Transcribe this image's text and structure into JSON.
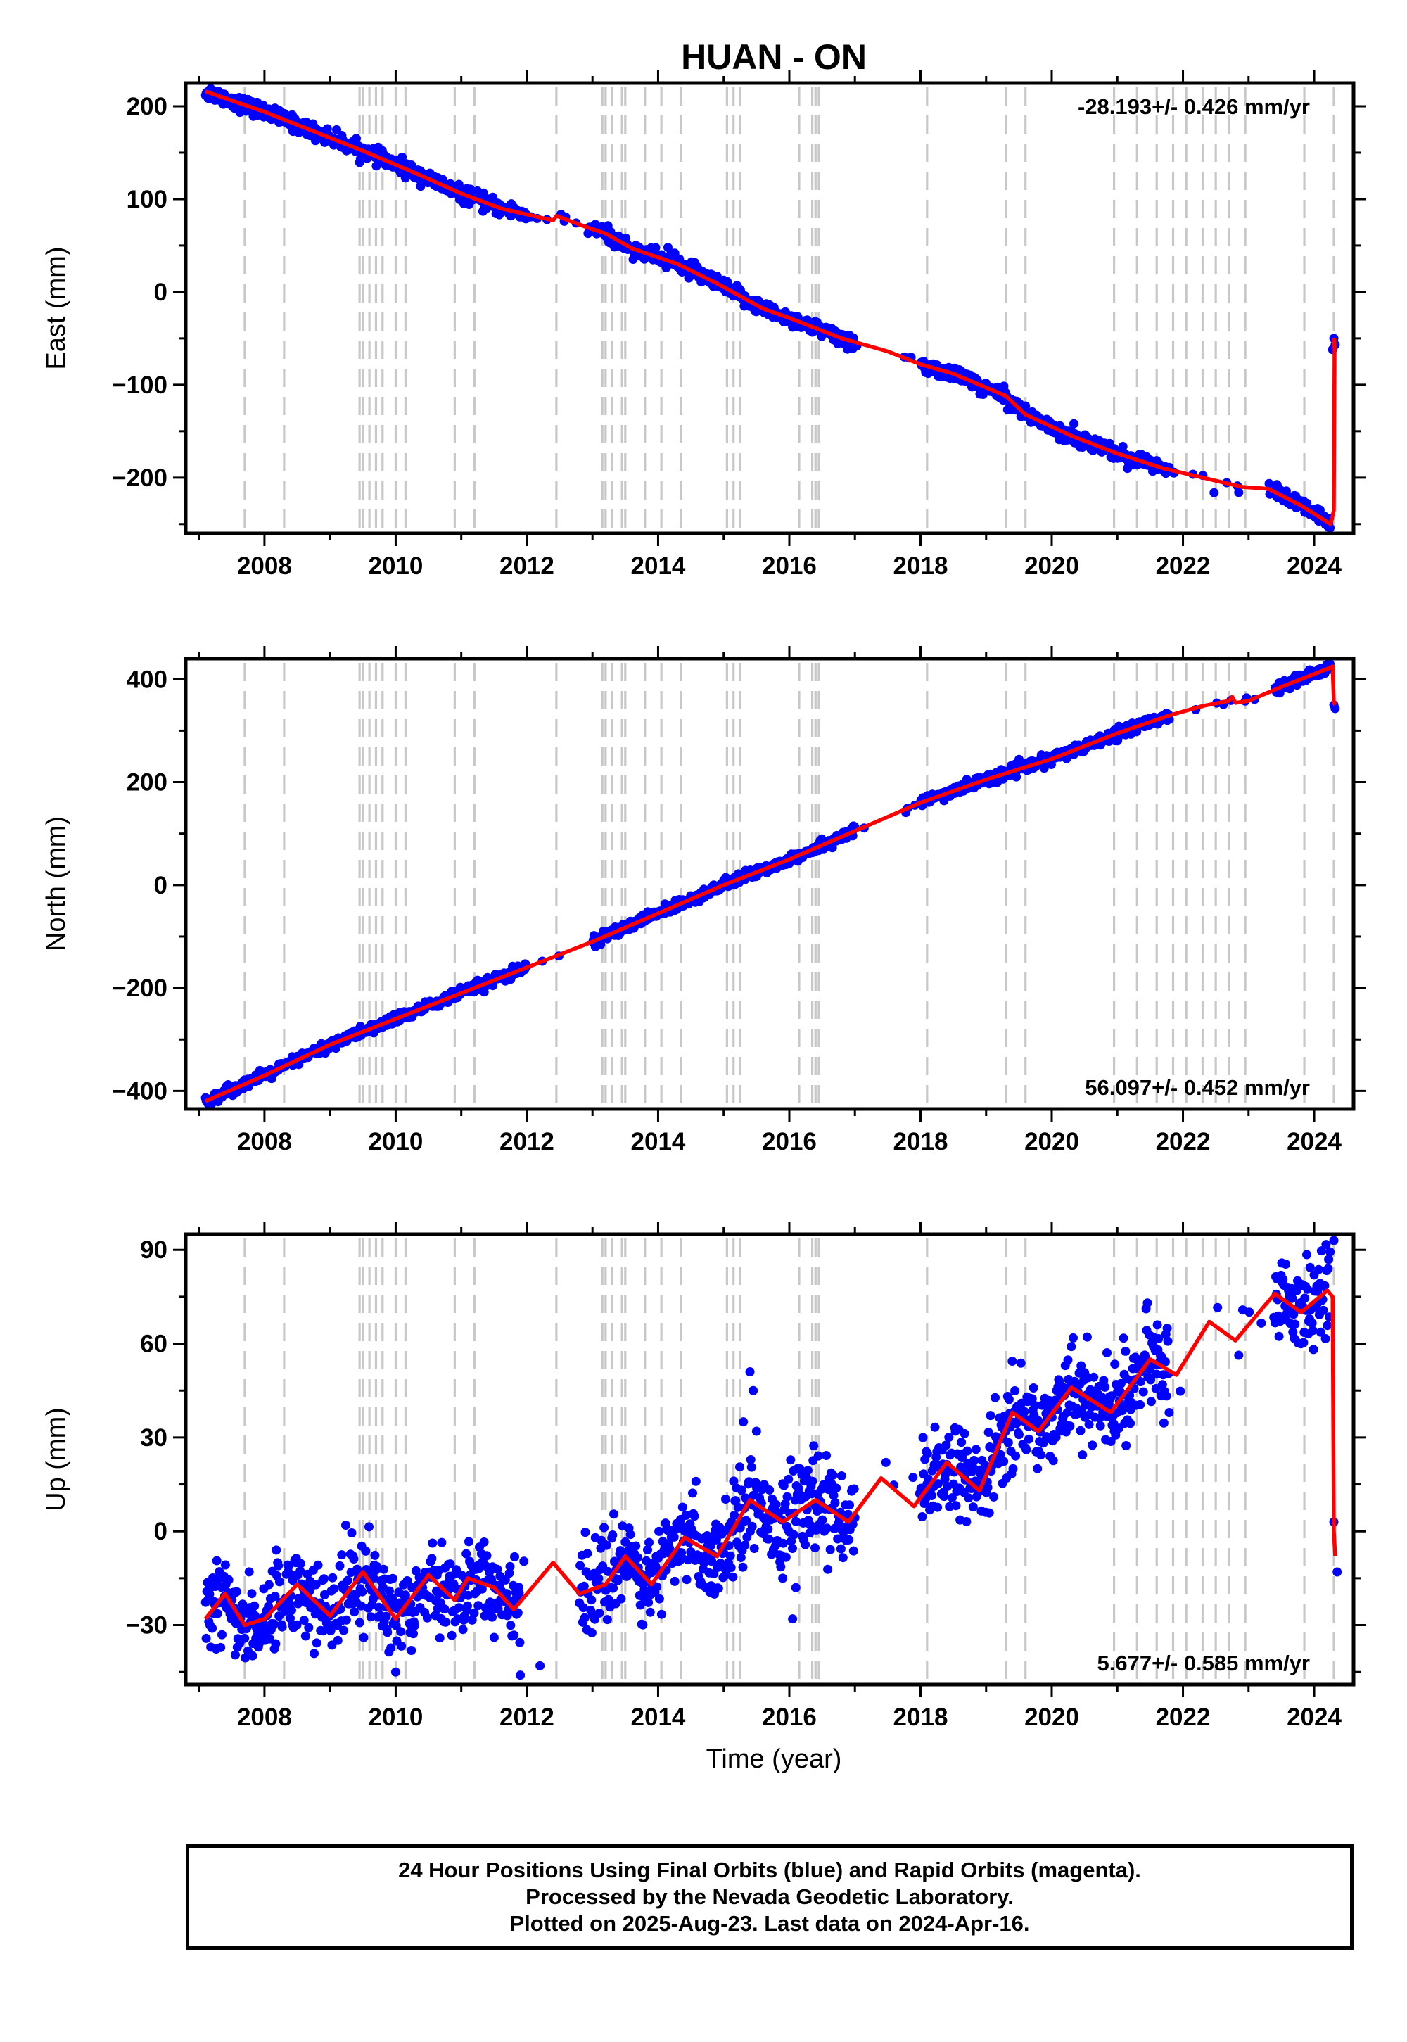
{
  "title": "HUAN - ON",
  "x_axis_label": "Time (year)",
  "footer": {
    "line1": "24 Hour Positions Using Final Orbits (blue) and Rapid Orbits (magenta).",
    "line2": "Processed by the Nevada Geodetic Laboratory.",
    "line3": "Plotted on 2025-Aug-23. Last data on 2024-Apr-16."
  },
  "colors": {
    "data": "#0000ff",
    "model": "#ff0000",
    "steps": "#c8c8c8",
    "frame": "#000000"
  },
  "chart_data": [
    {
      "type": "scatter",
      "component": "East",
      "ylabel": "East (mm)",
      "rate": "-28.193+/- 0.426 mm/yr",
      "rate_position": "top-right",
      "xlim": [
        2006.8,
        2024.6
      ],
      "ylim": [
        -260,
        225
      ],
      "xticks": [
        2008,
        2010,
        2012,
        2014,
        2016,
        2018,
        2020,
        2022,
        2024
      ],
      "yticks": [
        200,
        100,
        0,
        -100,
        -200
      ],
      "ytick_labels": [
        "200",
        "100",
        "0",
        "−100",
        "−200"
      ],
      "model": [
        [
          2007.1,
          216
        ],
        [
          2008.0,
          194
        ],
        [
          2009.5,
          152
        ],
        [
          2010.3,
          128
        ],
        [
          2011.0,
          106
        ],
        [
          2011.6,
          90
        ],
        [
          2012.4,
          77
        ],
        [
          2012.45,
          82
        ],
        [
          2012.9,
          70
        ],
        [
          2013.2,
          63
        ],
        [
          2013.6,
          47
        ],
        [
          2014.3,
          30
        ],
        [
          2014.9,
          9
        ],
        [
          2015.6,
          -18
        ],
        [
          2016.0,
          -28
        ],
        [
          2016.8,
          -50
        ],
        [
          2017.5,
          -64
        ],
        [
          2018.0,
          -78
        ],
        [
          2018.5,
          -88
        ],
        [
          2019.3,
          -112
        ],
        [
          2019.6,
          -132
        ],
        [
          2020.3,
          -155
        ],
        [
          2021.0,
          -174
        ],
        [
          2021.7,
          -190
        ],
        [
          2022.3,
          -200
        ],
        [
          2022.9,
          -210
        ],
        [
          2023.3,
          -212
        ],
        [
          2023.8,
          -230
        ],
        [
          2024.25,
          -250
        ],
        [
          2024.3,
          -235
        ],
        [
          2024.31,
          -62
        ],
        [
          2024.3,
          -50
        ]
      ],
      "gaps": [
        [
          2012.0,
          2013.0
        ],
        [
          2017.0,
          2018.0
        ],
        [
          2021.8,
          2023.4
        ]
      ],
      "scatter": 4,
      "outliers": [
        [
          2014.15,
          48
        ],
        [
          2014.2,
          42
        ],
        [
          2024.3,
          -50
        ],
        [
          2024.32,
          -57
        ],
        [
          2024.28,
          -62
        ]
      ]
    },
    {
      "type": "scatter",
      "component": "North",
      "ylabel": "North (mm)",
      "rate": "56.097+/- 0.452 mm/yr",
      "rate_position": "bottom-right",
      "xlim": [
        2006.8,
        2024.6
      ],
      "ylim": [
        -435,
        440
      ],
      "xticks": [
        2008,
        2010,
        2012,
        2014,
        2016,
        2018,
        2020,
        2022,
        2024
      ],
      "yticks": [
        400,
        200,
        0,
        -200,
        -400
      ],
      "ytick_labels": [
        "400",
        "200",
        "0",
        "−200",
        "−400"
      ],
      "model": [
        [
          2007.1,
          -420
        ],
        [
          2008.0,
          -370
        ],
        [
          2009.0,
          -310
        ],
        [
          2010.0,
          -260
        ],
        [
          2011.0,
          -210
        ],
        [
          2012.0,
          -160
        ],
        [
          2013.0,
          -110
        ],
        [
          2014.0,
          -55
        ],
        [
          2015.0,
          0
        ],
        [
          2016.0,
          50
        ],
        [
          2017.0,
          105
        ],
        [
          2018.0,
          160
        ],
        [
          2019.0,
          205
        ],
        [
          2020.0,
          245
        ],
        [
          2021.0,
          295
        ],
        [
          2021.8,
          330
        ],
        [
          2022.3,
          348
        ],
        [
          2022.7,
          358
        ],
        [
          2022.75,
          366
        ],
        [
          2022.8,
          354
        ],
        [
          2023.0,
          358
        ],
        [
          2023.5,
          385
        ],
        [
          2024.2,
          420
        ],
        [
          2024.28,
          425
        ],
        [
          2024.3,
          355
        ],
        [
          2024.32,
          350
        ]
      ],
      "gaps": [
        [
          2012.0,
          2013.0
        ],
        [
          2017.0,
          2018.0
        ],
        [
          2021.8,
          2023.4
        ]
      ],
      "scatter": 5,
      "outliers": [
        [
          2024.3,
          350
        ],
        [
          2024.32,
          343
        ]
      ]
    },
    {
      "type": "scatter",
      "component": "Up",
      "ylabel": "Up (mm)",
      "rate": "5.677+/- 0.585 mm/yr",
      "rate_position": "bottom-right",
      "xlim": [
        2006.8,
        2024.6
      ],
      "ylim": [
        -49,
        95
      ],
      "xticks": [
        2008,
        2010,
        2012,
        2014,
        2016,
        2018,
        2020,
        2022,
        2024
      ],
      "yticks": [
        90,
        60,
        30,
        0,
        -30
      ],
      "ytick_labels": [
        "90",
        "60",
        "30",
        "0",
        "−30"
      ],
      "model": [
        [
          2007.1,
          -28
        ],
        [
          2007.4,
          -20
        ],
        [
          2007.7,
          -30
        ],
        [
          2008.0,
          -28
        ],
        [
          2008.5,
          -17
        ],
        [
          2009.0,
          -27
        ],
        [
          2009.5,
          -13
        ],
        [
          2010.0,
          -28
        ],
        [
          2010.5,
          -14
        ],
        [
          2010.9,
          -22
        ],
        [
          2011.1,
          -15
        ],
        [
          2011.5,
          -18
        ],
        [
          2011.8,
          -25
        ],
        [
          2012.4,
          -10
        ],
        [
          2012.8,
          -20
        ],
        [
          2013.2,
          -17
        ],
        [
          2013.5,
          -8
        ],
        [
          2013.9,
          -17
        ],
        [
          2014.4,
          -2
        ],
        [
          2014.9,
          -8
        ],
        [
          2015.4,
          10
        ],
        [
          2015.9,
          3
        ],
        [
          2016.4,
          10
        ],
        [
          2016.9,
          3
        ],
        [
          2017.4,
          17
        ],
        [
          2017.9,
          8
        ],
        [
          2018.4,
          22
        ],
        [
          2018.9,
          13
        ],
        [
          2019.4,
          38
        ],
        [
          2019.8,
          32
        ],
        [
          2020.3,
          46
        ],
        [
          2020.9,
          38
        ],
        [
          2021.5,
          55
        ],
        [
          2021.9,
          50
        ],
        [
          2022.4,
          67
        ],
        [
          2022.8,
          61
        ],
        [
          2023.4,
          76
        ],
        [
          2023.8,
          70
        ],
        [
          2024.2,
          77
        ],
        [
          2024.28,
          75
        ],
        [
          2024.3,
          0
        ],
        [
          2024.32,
          -8
        ]
      ],
      "gaps": [
        [
          2011.9,
          2012.8
        ],
        [
          2017.0,
          2018.0
        ],
        [
          2021.8,
          2023.4
        ]
      ],
      "scatter": 7,
      "outliers": [
        [
          2015.4,
          51
        ],
        [
          2015.45,
          45
        ],
        [
          2015.3,
          35
        ],
        [
          2015.5,
          32
        ],
        [
          2015.9,
          -15
        ],
        [
          2016.1,
          -18
        ],
        [
          2016.05,
          -28
        ],
        [
          2010.0,
          -45
        ],
        [
          2011.9,
          -46
        ],
        [
          2012.2,
          -43
        ],
        [
          2024.35,
          -13
        ],
        [
          2024.3,
          3
        ],
        [
          2024.3,
          93
        ]
      ]
    }
  ],
  "step_epochs": [
    2007.7,
    2008.3,
    2009.45,
    2009.5,
    2009.6,
    2009.7,
    2009.8,
    2010.0,
    2010.15,
    2010.9,
    2011.2,
    2012.45,
    2013.15,
    2013.2,
    2013.3,
    2013.45,
    2013.5,
    2013.8,
    2014.05,
    2014.35,
    2015.05,
    2015.15,
    2015.25,
    2016.15,
    2016.35,
    2016.4,
    2016.45,
    2018.1,
    2019.3,
    2019.6,
    2020.95,
    2021.3,
    2021.6,
    2021.85,
    2022.05,
    2022.3,
    2022.5,
    2022.7,
    2022.95,
    2023.85,
    2024.3
  ]
}
